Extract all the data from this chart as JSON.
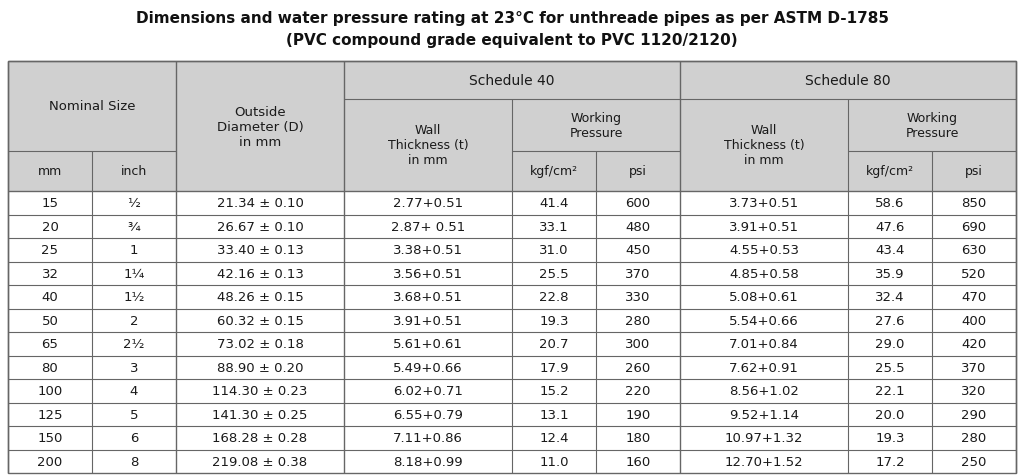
{
  "title_line1": "Dimensions and water pressure rating at 23°C for unthreade pipes as per ASTM D-1785",
  "title_line2": "(PVC compound grade equivalent to PVC 1120/2120)",
  "data_rows": [
    [
      "15",
      "½",
      "21.34 ± 0.10",
      "2.77+0.51",
      "41.4",
      "600",
      "3.73+0.51",
      "58.6",
      "850"
    ],
    [
      "20",
      "¾",
      "26.67 ± 0.10",
      "2.87+ 0.51",
      "33.1",
      "480",
      "3.91+0.51",
      "47.6",
      "690"
    ],
    [
      "25",
      "1",
      "33.40 ± 0.13",
      "3.38+0.51",
      "31.0",
      "450",
      "4.55+0.53",
      "43.4",
      "630"
    ],
    [
      "32",
      "1¼",
      "42.16 ± 0.13",
      "3.56+0.51",
      "25.5",
      "370",
      "4.85+0.58",
      "35.9",
      "520"
    ],
    [
      "40",
      "1½",
      "48.26 ± 0.15",
      "3.68+0.51",
      "22.8",
      "330",
      "5.08+0.61",
      "32.4",
      "470"
    ],
    [
      "50",
      "2",
      "60.32 ± 0.15",
      "3.91+0.51",
      "19.3",
      "280",
      "5.54+0.66",
      "27.6",
      "400"
    ],
    [
      "65",
      "2½",
      "73.02 ± 0.18",
      "5.61+0.61",
      "20.7",
      "300",
      "7.01+0.84",
      "29.0",
      "420"
    ],
    [
      "80",
      "3",
      "88.90 ± 0.20",
      "5.49+0.66",
      "17.9",
      "260",
      "7.62+0.91",
      "25.5",
      "370"
    ],
    [
      "100",
      "4",
      "114.30 ± 0.23",
      "6.02+0.71",
      "15.2",
      "220",
      "8.56+1.02",
      "22.1",
      "320"
    ],
    [
      "125",
      "5",
      "141.30 ± 0.25",
      "6.55+0.79",
      "13.1",
      "190",
      "9.52+1.14",
      "20.0",
      "290"
    ],
    [
      "150",
      "6",
      "168.28 ± 0.28",
      "7.11+0.86",
      "12.4",
      "180",
      "10.97+1.32",
      "19.3",
      "280"
    ],
    [
      "200",
      "8",
      "219.08 ± 0.38",
      "8.18+0.99",
      "11.0",
      "160",
      "12.70+1.52",
      "17.2",
      "250"
    ]
  ],
  "bg_color": "#f0f0f0",
  "header_bg": "#d0d0d0",
  "white_bg": "#ffffff",
  "line_color": "#666666",
  "text_color": "#1a1a1a",
  "title_color": "#111111",
  "col_widths": [
    0.72,
    0.72,
    1.44,
    1.44,
    0.72,
    0.72,
    1.44,
    0.72,
    0.72
  ],
  "title_fontsize": 11,
  "header_fontsize": 9,
  "data_fontsize": 9.5
}
